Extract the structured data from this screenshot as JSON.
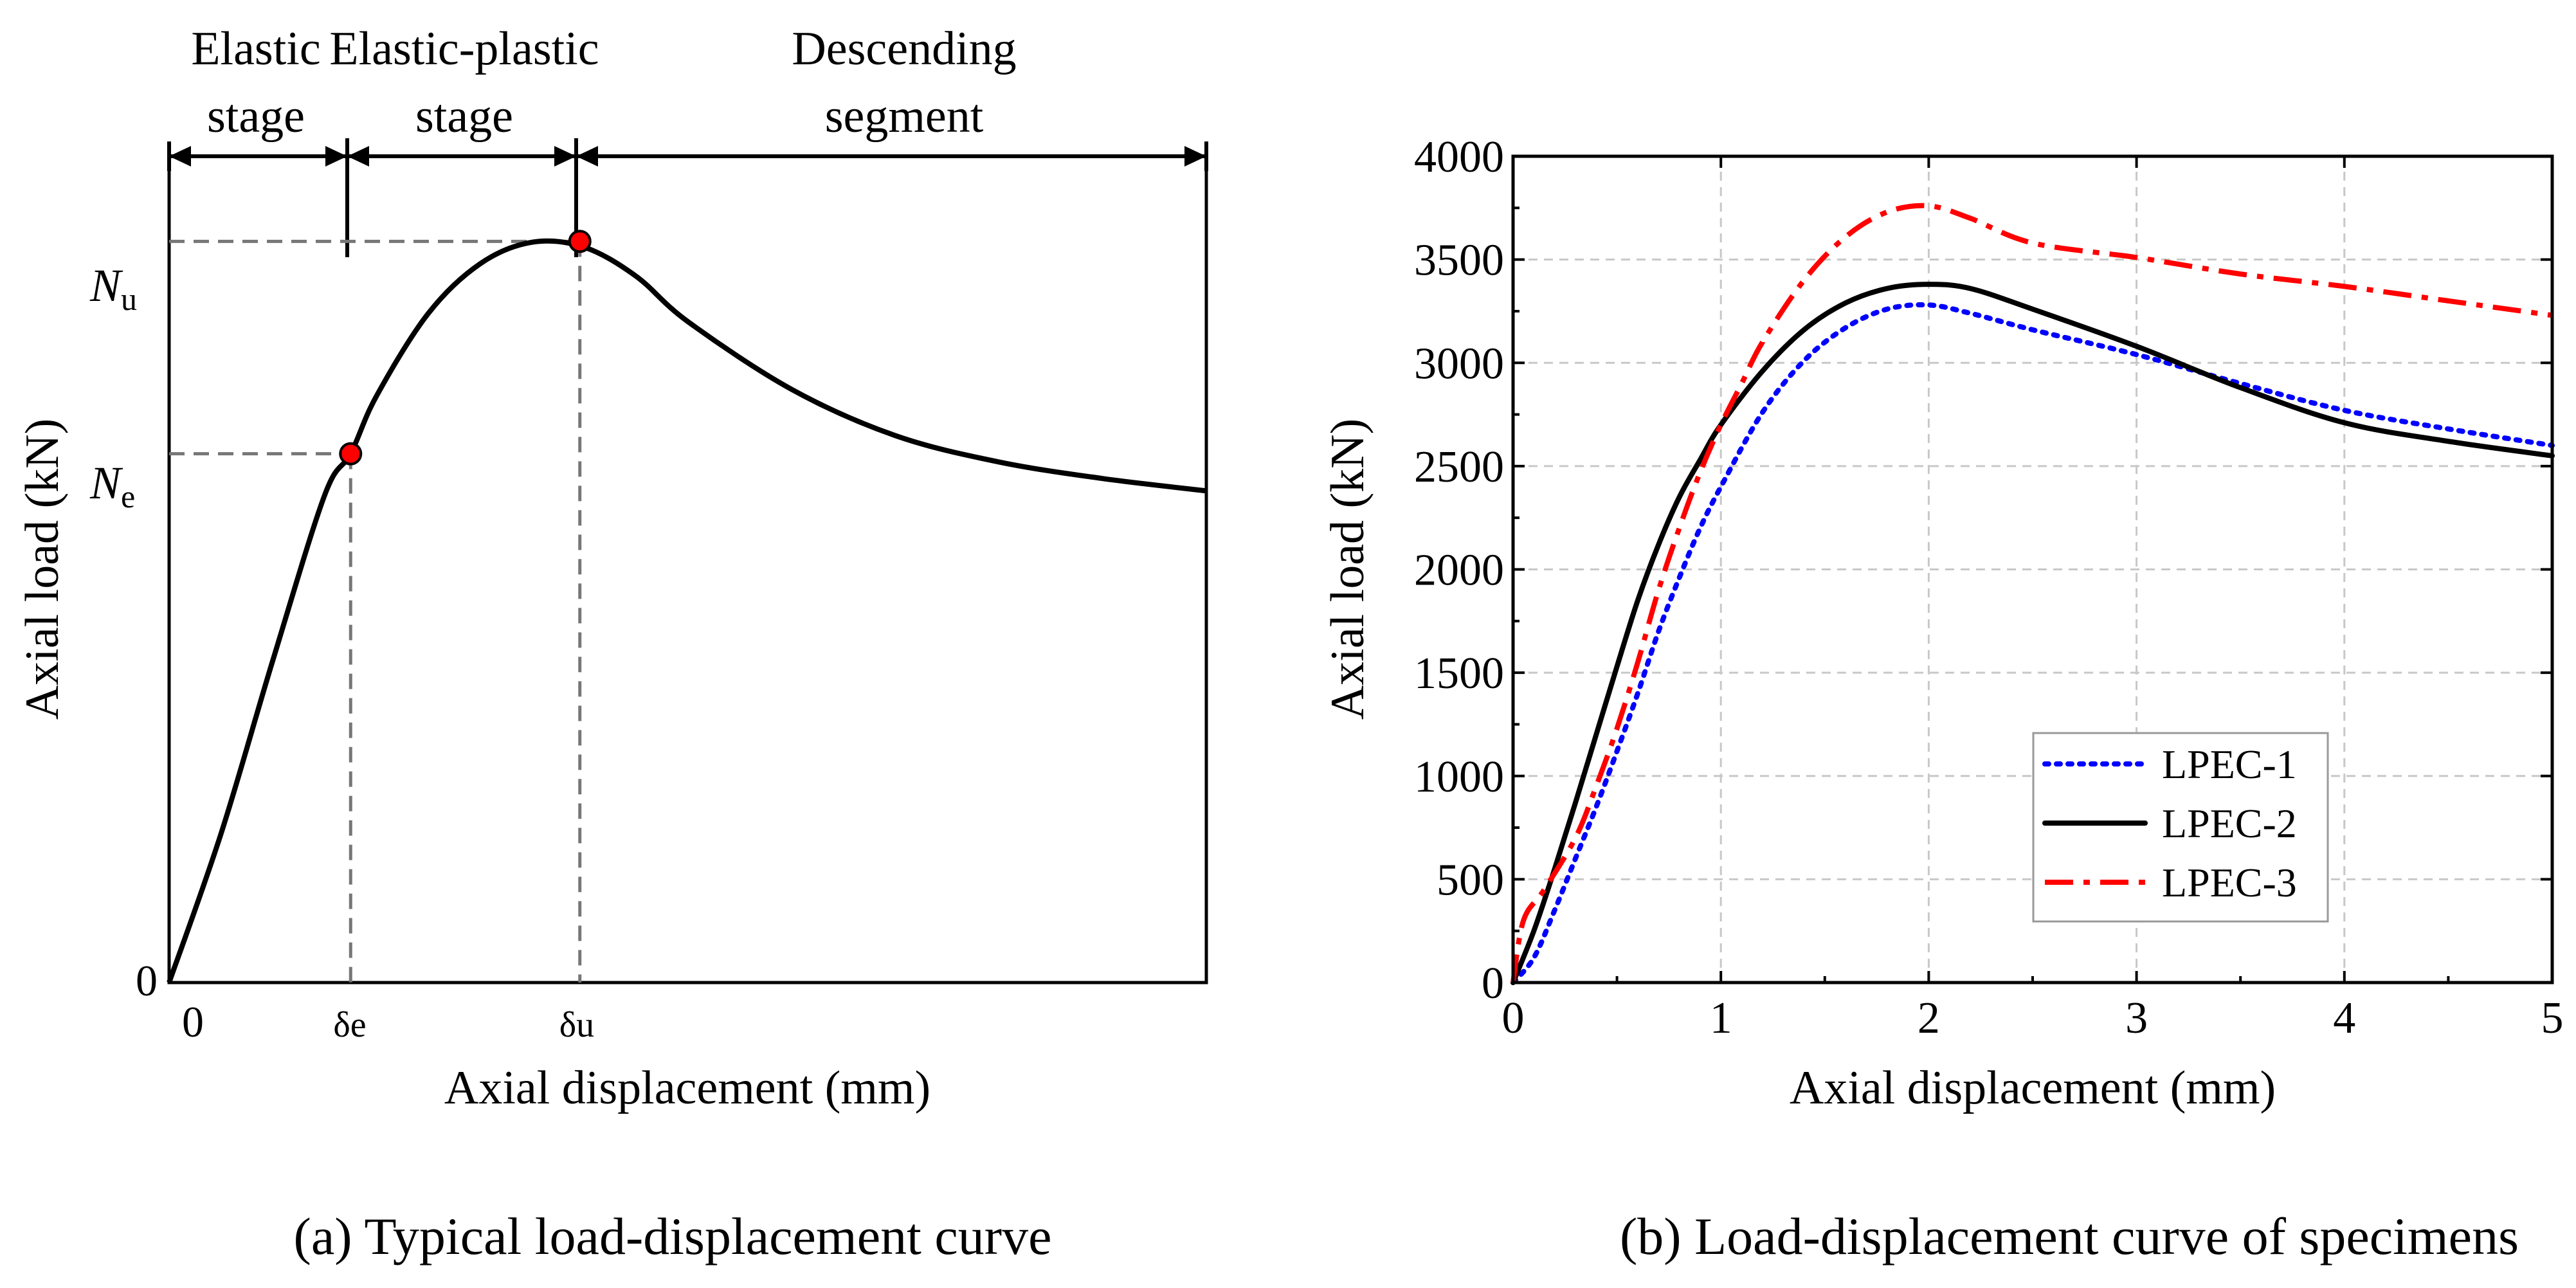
{
  "chart_data": [
    {
      "type": "line",
      "title": "(a) Typical load-displacement curve",
      "xlabel": "Axial displacement (mm)",
      "ylabel": "Axial load (kN)",
      "x_tick_labels": [
        "0",
        "δe",
        "δu"
      ],
      "y_tick_labels": [
        "0",
        "N",
        "N"
      ],
      "y_tick_subscripts": [
        "",
        "e",
        "u"
      ],
      "stage_labels": [
        {
          "line1": "Elastic",
          "line2": "stage"
        },
        {
          "line1": "Elastic-plastic",
          "line2": "stage"
        },
        {
          "line1": "Descending",
          "line2": "segment"
        }
      ],
      "axis_ranges": {
        "x": [
          0,
          10
        ],
        "y": [
          0,
          10
        ]
      },
      "curve": {
        "x": [
          0,
          0.5,
          1.0,
          1.5,
          1.75,
          2.0,
          2.5,
          3.0,
          3.5,
          4.0,
          4.5,
          5.0,
          6.0,
          7.0,
          8.0,
          9.0,
          10.0
        ],
        "y": [
          0,
          1.8,
          3.9,
          5.9,
          6.4,
          7.1,
          8.1,
          8.7,
          8.96,
          8.9,
          8.55,
          8.0,
          7.18,
          6.62,
          6.3,
          6.1,
          5.95
        ]
      },
      "key_points": [
        {
          "name": "elastic limit",
          "label": "Ne",
          "x": 1.75,
          "y": 6.4,
          "color": "#ff0000"
        },
        {
          "name": "ultimate",
          "label": "Nu",
          "x": 3.96,
          "y": 8.97,
          "color": "#ff0000"
        }
      ],
      "grid": false
    },
    {
      "type": "line",
      "title": "(b) Load-displacement curve of specimens",
      "xlabel": "Axial displacement (mm)",
      "ylabel": "Axial load (kN)",
      "xlim": [
        0,
        5
      ],
      "ylim": [
        0,
        4000
      ],
      "x_ticks": [
        0,
        1,
        2,
        3,
        4,
        5
      ],
      "y_ticks": [
        0,
        500,
        1000,
        1500,
        2000,
        2500,
        3000,
        3500,
        4000
      ],
      "grid": true,
      "legend_position": "bottom-right",
      "series": [
        {
          "name": "LPEC-1",
          "color": "#0000ff",
          "style": "dotted",
          "x": [
            0,
            0.1,
            0.2,
            0.3,
            0.4,
            0.5,
            0.6,
            0.7,
            0.8,
            0.9,
            1.0,
            1.2,
            1.4,
            1.6,
            1.8,
            2.0,
            2.2,
            2.5,
            3.0,
            3.5,
            4.0,
            4.5,
            5.0
          ],
          "y": [
            0,
            120,
            350,
            600,
            850,
            1120,
            1400,
            1700,
            1960,
            2200,
            2400,
            2760,
            3010,
            3170,
            3260,
            3280,
            3240,
            3160,
            3040,
            2900,
            2770,
            2680,
            2600
          ]
        },
        {
          "name": "LPEC-2",
          "color": "#000000",
          "style": "solid",
          "x": [
            0,
            0.1,
            0.2,
            0.3,
            0.4,
            0.5,
            0.6,
            0.7,
            0.8,
            0.9,
            1.0,
            1.2,
            1.4,
            1.6,
            1.8,
            2.0,
            2.2,
            2.5,
            3.0,
            3.5,
            4.0,
            4.5,
            5.0
          ],
          "y": [
            0,
            250,
            550,
            870,
            1200,
            1530,
            1850,
            2120,
            2350,
            2530,
            2700,
            2960,
            3160,
            3290,
            3360,
            3380,
            3360,
            3260,
            3080,
            2880,
            2710,
            2620,
            2550
          ]
        },
        {
          "name": "LPEC-3",
          "color": "#ff0000",
          "style": "dashdot",
          "x": [
            0,
            0.05,
            0.15,
            0.3,
            0.4,
            0.5,
            0.6,
            0.7,
            0.8,
            0.9,
            1.0,
            1.1,
            1.2,
            1.4,
            1.6,
            1.8,
            2.0,
            2.2,
            2.5,
            3.0,
            3.5,
            4.0,
            4.5,
            5.0
          ],
          "y": [
            0,
            300,
            450,
            700,
            950,
            1230,
            1550,
            1900,
            2200,
            2470,
            2700,
            2900,
            3100,
            3400,
            3610,
            3730,
            3760,
            3700,
            3580,
            3510,
            3430,
            3370,
            3300,
            3230
          ]
        }
      ]
    }
  ]
}
